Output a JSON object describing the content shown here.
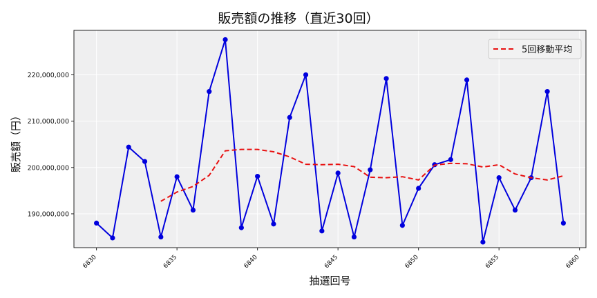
{
  "chart_data": {
    "type": "line",
    "title": "販売額の推移（直近30回）",
    "xlabel": "抽選回号",
    "ylabel": "販売額（円）",
    "x": [
      6830,
      6831,
      6832,
      6833,
      6834,
      6835,
      6836,
      6837,
      6838,
      6839,
      6840,
      6841,
      6842,
      6843,
      6844,
      6845,
      6846,
      6847,
      6848,
      6849,
      6850,
      6851,
      6852,
      6853,
      6854,
      6855,
      6856,
      6857,
      6858,
      6859
    ],
    "series": [
      {
        "name": "販売額",
        "color": "#0000dd",
        "style": "solid-with-markers",
        "values": [
          188000000,
          184800000,
          204400000,
          201300000,
          185000000,
          198000000,
          190800000,
          216400000,
          227600000,
          187000000,
          198100000,
          187800000,
          210800000,
          220000000,
          186300000,
          198800000,
          185000000,
          199500000,
          219200000,
          187500000,
          195500000,
          200600000,
          201700000,
          218900000,
          183900000,
          197800000,
          190800000,
          197800000,
          216400000,
          188000000
        ]
      },
      {
        "name": "5回移動平均",
        "color": "#e81010",
        "style": "dashed",
        "values": [
          null,
          null,
          null,
          null,
          192700000,
          194700000,
          195900000,
          198300000,
          203600000,
          203900000,
          203900000,
          203400000,
          202300000,
          200700000,
          200600000,
          200700000,
          200200000,
          197900000,
          197800000,
          198000000,
          197300000,
          200500000,
          200900000,
          200800000,
          200100000,
          200600000,
          198600000,
          197800000,
          197300000,
          198200000
        ]
      }
    ],
    "yticks": [
      190000000,
      200000000,
      210000000,
      220000000
    ],
    "ytick_labels": [
      "190,000,000",
      "200,000,000",
      "210,000,000",
      "220,000,000"
    ],
    "xticks": [
      6830,
      6835,
      6840,
      6845,
      6850,
      6855,
      6860
    ],
    "xtick_labels": [
      "6830",
      "6835",
      "6840",
      "6845",
      "6850",
      "6855",
      "6860"
    ],
    "xlim": [
      6828.6,
      6860.4
    ],
    "ylim": [
      182700000,
      229600000
    ],
    "grid": true,
    "legend": {
      "position": "upper right",
      "entries": [
        "5回移動平均"
      ]
    },
    "background": "#efeff0"
  }
}
